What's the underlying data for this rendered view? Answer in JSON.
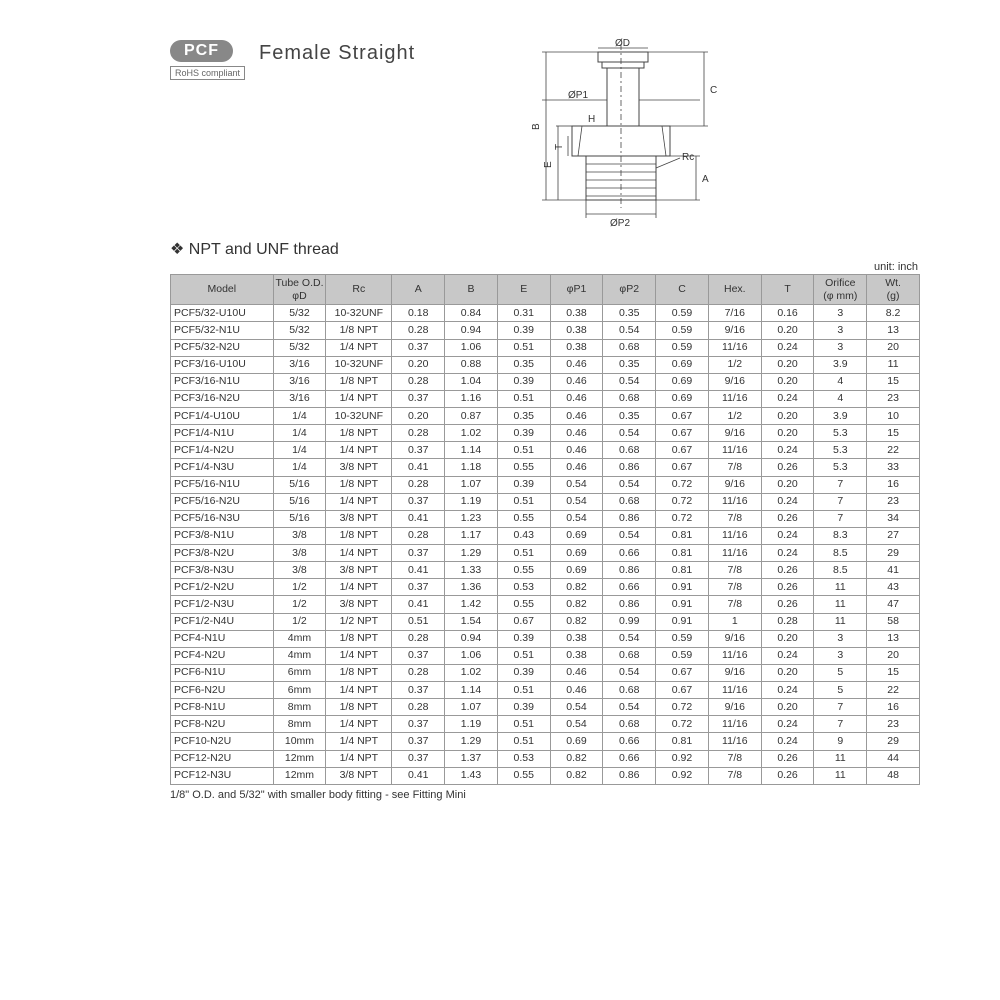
{
  "header": {
    "logo": "PCF",
    "rohs": "RoHS compliant",
    "title": "Female  Straight"
  },
  "diagram": {
    "labels": {
      "od": "ØD",
      "op1": "ØP1",
      "op2": "ØP2",
      "b": "B",
      "e": "E",
      "h": "H",
      "t": "T",
      "c": "C",
      "a": "A",
      "rc": "Rc"
    }
  },
  "section": {
    "title": "NPT and UNF thread",
    "unit_label": "unit: inch"
  },
  "table": {
    "columns": [
      "Model",
      "Tube O.D.\nφD",
      "Rc",
      "A",
      "B",
      "E",
      "φP1",
      "φP2",
      "C",
      "Hex.",
      "T",
      "Orifice\n(φ mm)",
      "Wt.\n(g)"
    ],
    "rows": [
      [
        "PCF5/32-U10U",
        "5/32",
        "10-32UNF",
        "0.18",
        "0.84",
        "0.31",
        "0.38",
        "0.35",
        "0.59",
        "7/16",
        "0.16",
        "3",
        "8.2"
      ],
      [
        "PCF5/32-N1U",
        "5/32",
        "1/8 NPT",
        "0.28",
        "0.94",
        "0.39",
        "0.38",
        "0.54",
        "0.59",
        "9/16",
        "0.20",
        "3",
        "13"
      ],
      [
        "PCF5/32-N2U",
        "5/32",
        "1/4 NPT",
        "0.37",
        "1.06",
        "0.51",
        "0.38",
        "0.68",
        "0.59",
        "11/16",
        "0.24",
        "3",
        "20"
      ],
      [
        "PCF3/16-U10U",
        "3/16",
        "10-32UNF",
        "0.20",
        "0.88",
        "0.35",
        "0.46",
        "0.35",
        "0.69",
        "1/2",
        "0.20",
        "3.9",
        "11"
      ],
      [
        "PCF3/16-N1U",
        "3/16",
        "1/8 NPT",
        "0.28",
        "1.04",
        "0.39",
        "0.46",
        "0.54",
        "0.69",
        "9/16",
        "0.20",
        "4",
        "15"
      ],
      [
        "PCF3/16-N2U",
        "3/16",
        "1/4 NPT",
        "0.37",
        "1.16",
        "0.51",
        "0.46",
        "0.68",
        "0.69",
        "11/16",
        "0.24",
        "4",
        "23"
      ],
      [
        "PCF1/4-U10U",
        "1/4",
        "10-32UNF",
        "0.20",
        "0.87",
        "0.35",
        "0.46",
        "0.35",
        "0.67",
        "1/2",
        "0.20",
        "3.9",
        "10"
      ],
      [
        "PCF1/4-N1U",
        "1/4",
        "1/8 NPT",
        "0.28",
        "1.02",
        "0.39",
        "0.46",
        "0.54",
        "0.67",
        "9/16",
        "0.20",
        "5.3",
        "15"
      ],
      [
        "PCF1/4-N2U",
        "1/4",
        "1/4 NPT",
        "0.37",
        "1.14",
        "0.51",
        "0.46",
        "0.68",
        "0.67",
        "11/16",
        "0.24",
        "5.3",
        "22"
      ],
      [
        "PCF1/4-N3U",
        "1/4",
        "3/8 NPT",
        "0.41",
        "1.18",
        "0.55",
        "0.46",
        "0.86",
        "0.67",
        "7/8",
        "0.26",
        "5.3",
        "33"
      ],
      [
        "PCF5/16-N1U",
        "5/16",
        "1/8 NPT",
        "0.28",
        "1.07",
        "0.39",
        "0.54",
        "0.54",
        "0.72",
        "9/16",
        "0.20",
        "7",
        "16"
      ],
      [
        "PCF5/16-N2U",
        "5/16",
        "1/4 NPT",
        "0.37",
        "1.19",
        "0.51",
        "0.54",
        "0.68",
        "0.72",
        "11/16",
        "0.24",
        "7",
        "23"
      ],
      [
        "PCF5/16-N3U",
        "5/16",
        "3/8 NPT",
        "0.41",
        "1.23",
        "0.55",
        "0.54",
        "0.86",
        "0.72",
        "7/8",
        "0.26",
        "7",
        "34"
      ],
      [
        "PCF3/8-N1U",
        "3/8",
        "1/8 NPT",
        "0.28",
        "1.17",
        "0.43",
        "0.69",
        "0.54",
        "0.81",
        "11/16",
        "0.24",
        "8.3",
        "27"
      ],
      [
        "PCF3/8-N2U",
        "3/8",
        "1/4 NPT",
        "0.37",
        "1.29",
        "0.51",
        "0.69",
        "0.66",
        "0.81",
        "11/16",
        "0.24",
        "8.5",
        "29"
      ],
      [
        "PCF3/8-N3U",
        "3/8",
        "3/8 NPT",
        "0.41",
        "1.33",
        "0.55",
        "0.69",
        "0.86",
        "0.81",
        "7/8",
        "0.26",
        "8.5",
        "41"
      ],
      [
        "PCF1/2-N2U",
        "1/2",
        "1/4 NPT",
        "0.37",
        "1.36",
        "0.53",
        "0.82",
        "0.66",
        "0.91",
        "7/8",
        "0.26",
        "11",
        "43"
      ],
      [
        "PCF1/2-N3U",
        "1/2",
        "3/8 NPT",
        "0.41",
        "1.42",
        "0.55",
        "0.82",
        "0.86",
        "0.91",
        "7/8",
        "0.26",
        "11",
        "47"
      ],
      [
        "PCF1/2-N4U",
        "1/2",
        "1/2 NPT",
        "0.51",
        "1.54",
        "0.67",
        "0.82",
        "0.99",
        "0.91",
        "1",
        "0.28",
        "11",
        "58"
      ],
      [
        "PCF4-N1U",
        "4mm",
        "1/8 NPT",
        "0.28",
        "0.94",
        "0.39",
        "0.38",
        "0.54",
        "0.59",
        "9/16",
        "0.20",
        "3",
        "13"
      ],
      [
        "PCF4-N2U",
        "4mm",
        "1/4 NPT",
        "0.37",
        "1.06",
        "0.51",
        "0.38",
        "0.68",
        "0.59",
        "11/16",
        "0.24",
        "3",
        "20"
      ],
      [
        "PCF6-N1U",
        "6mm",
        "1/8 NPT",
        "0.28",
        "1.02",
        "0.39",
        "0.46",
        "0.54",
        "0.67",
        "9/16",
        "0.20",
        "5",
        "15"
      ],
      [
        "PCF6-N2U",
        "6mm",
        "1/4 NPT",
        "0.37",
        "1.14",
        "0.51",
        "0.46",
        "0.68",
        "0.67",
        "11/16",
        "0.24",
        "5",
        "22"
      ],
      [
        "PCF8-N1U",
        "8mm",
        "1/8 NPT",
        "0.28",
        "1.07",
        "0.39",
        "0.54",
        "0.54",
        "0.72",
        "9/16",
        "0.20",
        "7",
        "16"
      ],
      [
        "PCF8-N2U",
        "8mm",
        "1/4 NPT",
        "0.37",
        "1.19",
        "0.51",
        "0.54",
        "0.68",
        "0.72",
        "11/16",
        "0.24",
        "7",
        "23"
      ],
      [
        "PCF10-N2U",
        "10mm",
        "1/4 NPT",
        "0.37",
        "1.29",
        "0.51",
        "0.69",
        "0.66",
        "0.81",
        "11/16",
        "0.24",
        "9",
        "29"
      ],
      [
        "PCF12-N2U",
        "12mm",
        "1/4 NPT",
        "0.37",
        "1.37",
        "0.53",
        "0.82",
        "0.66",
        "0.92",
        "7/8",
        "0.26",
        "11",
        "44"
      ],
      [
        "PCF12-N3U",
        "12mm",
        "3/8 NPT",
        "0.41",
        "1.43",
        "0.55",
        "0.82",
        "0.86",
        "0.92",
        "7/8",
        "0.26",
        "11",
        "48"
      ]
    ]
  },
  "footnote": "1/8\" O.D. and 5/32\" with smaller body fitting -  see Fitting Mini",
  "style": {
    "header_bg": "#c8c8c8",
    "border_color": "#999999",
    "text_color": "#333333",
    "font_size_table": 10.5,
    "font_size_title": 20
  }
}
